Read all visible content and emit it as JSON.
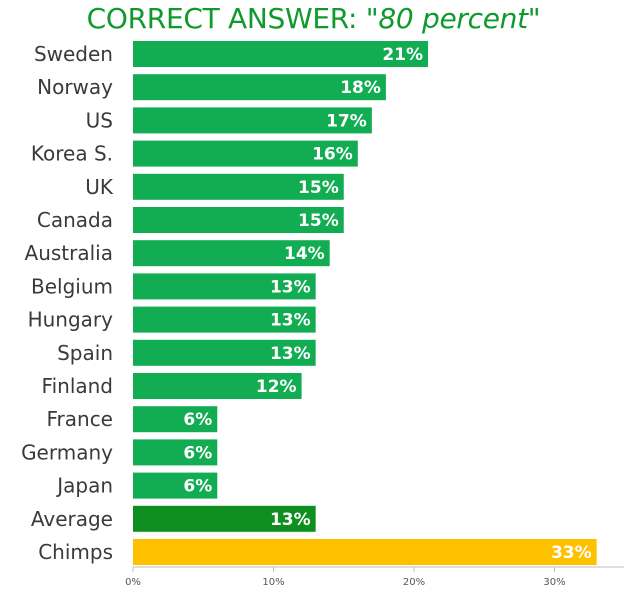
{
  "header": {
    "prefix": "CORRECT ANSWER: ",
    "answer": "\"80 percent\""
  },
  "colors": {
    "country": "#12ac52",
    "average": "#0f8f1f",
    "chimps": "#ffc000",
    "title": "#0f9a2d"
  },
  "chart_data": {
    "type": "bar",
    "orientation": "horizontal",
    "title": "CORRECT ANSWER: \"80 percent\"",
    "categories": [
      "Sweden",
      "Norway",
      "US",
      "Korea S.",
      "UK",
      "Canada",
      "Australia",
      "Belgium",
      "Hungary",
      "Spain",
      "Finland",
      "France",
      "Germany",
      "Japan",
      "Average",
      "Chimps"
    ],
    "values": [
      21,
      18,
      17,
      16,
      15,
      15,
      14,
      13,
      13,
      13,
      12,
      6,
      6,
      6,
      13,
      33
    ],
    "value_labels": [
      "21%",
      "18%",
      "17%",
      "16%",
      "15%",
      "15%",
      "14%",
      "13%",
      "13%",
      "13%",
      "12%",
      "6%",
      "6%",
      "6%",
      "13%",
      "33%"
    ],
    "bar_kind": [
      "country",
      "country",
      "country",
      "country",
      "country",
      "country",
      "country",
      "country",
      "country",
      "country",
      "country",
      "country",
      "country",
      "country",
      "average",
      "chimps"
    ],
    "xlim": [
      0,
      35
    ],
    "xticks": [
      0,
      10,
      20,
      30
    ],
    "xtick_labels": [
      "0%",
      "10%",
      "20%",
      "30%"
    ],
    "grid": false,
    "legend": "none"
  }
}
